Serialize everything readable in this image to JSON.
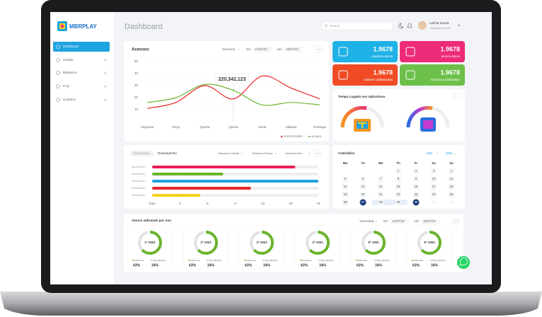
{
  "sidebar": {
    "logo": "MBRPLAY",
    "menu": [
      "Dashboard",
      "Gestão",
      "Biblioteca",
      "FAQ",
      "Contatos"
    ]
  },
  "header": {
    "title": "Dashboard",
    "search": "Search",
    "user_name": "Letícia Souza",
    "user_role": "Literatura Escolar"
  },
  "stats": [
    {
      "value": "1.9678",
      "label": "usuários ativos",
      "color": "#1fb2e6"
    },
    {
      "value": "1.9678",
      "label": "alunos ativos",
      "color": "#ec2b79"
    },
    {
      "value": "1.9678",
      "label": "classes cadastradas",
      "color": "#f04b24"
    },
    {
      "value": "1.9678",
      "label": "escolas cadastradas",
      "color": "#6cc04a"
    }
  ],
  "chart_data": [
    {
      "type": "line",
      "title": "Acessos",
      "period": "Semanal",
      "from_label": "De:",
      "from": "12/07/23",
      "to_label": "Até:",
      "to": "18/07/23",
      "categories": [
        "Segunda",
        "Terça",
        "Quarta",
        "Quinta",
        "Sexta",
        "Sábado",
        "Domingo"
      ],
      "series": [
        {
          "name": "PROFESSORES",
          "color": "#e8262b",
          "values": [
            11,
            16,
            30,
            19,
            38,
            28,
            19
          ]
        },
        {
          "name": "ALUNOS",
          "color": "#6ab42d",
          "values": [
            16,
            20,
            31,
            26,
            14,
            16,
            14
          ]
        }
      ],
      "ylim": [
        0,
        50
      ],
      "yticks": [
        10,
        20,
        30,
        40,
        50
      ],
      "grid": true,
      "annotation": "220,342,123"
    },
    {
      "type": "bar",
      "orientation": "horizontal",
      "tabs": [
        "Quantidade",
        "Desempenho"
      ],
      "filters": [
        "Selecione Cidade",
        "Selecione Escola",
        "Selecione Ano"
      ],
      "categories": [
        "Nome Aluno",
        "Nome Aluno",
        "Nome Aluno",
        "Nome Aluno",
        "Nome Aluno"
      ],
      "values": [
        15.5,
        7.7,
        18,
        10.7,
        5.2
      ],
      "colors": [
        "#ec1f5a",
        "#6ab42d",
        "#1fa3e0",
        "#e8262b",
        "#f5d21a"
      ],
      "xlim": [
        0,
        18
      ],
      "xticks": [
        {
          "value": 0,
          "label": "Dias"
        },
        3,
        6,
        9,
        12,
        15,
        18
      ],
      "grid": true
    }
  ],
  "app_time": {
    "title": "Tempo Logado nos Aplicativos"
  },
  "calendar": {
    "title": "Calendário",
    "month": "Abril",
    "year": "2021",
    "weekdays": [
      "Mo",
      "Tu",
      "We",
      "Th",
      "Fr",
      "Sa",
      "Su"
    ],
    "weeks": [
      [
        null,
        null,
        null,
        1,
        2,
        3,
        4
      ],
      [
        5,
        6,
        7,
        8,
        9,
        10,
        11
      ],
      [
        12,
        13,
        14,
        15,
        16,
        17,
        18
      ],
      [
        19,
        20,
        21,
        22,
        23,
        24,
        25
      ],
      [
        26,
        27,
        28,
        29,
        30,
        1,
        2
      ]
    ],
    "selected": [
      27,
      30
    ]
  },
  "year_usage": {
    "title": "Alunos utilizando por Ano",
    "period": "Semestral",
    "from_label": "De:",
    "from": "12/07/23",
    "to_label": "Até:",
    "to": "18/07/23",
    "legend": [
      "Utilizando",
      "Não utilizando"
    ],
    "colors": [
      "#6ab42d",
      "#e2e2e2"
    ],
    "years": [
      {
        "name": "1º ANO",
        "values": [
          63,
          34
        ],
        "value_labels": [
          "63%",
          "34%"
        ]
      },
      {
        "name": "2º ANO",
        "values": [
          63,
          34
        ],
        "value_labels": [
          "63%",
          "34%"
        ]
      },
      {
        "name": "3º ANO",
        "values": [
          63,
          34
        ],
        "value_labels": [
          "63%",
          "34%"
        ]
      },
      {
        "name": "4º ANO",
        "values": [
          63,
          34
        ],
        "value_labels": [
          "63%",
          "34%"
        ]
      },
      {
        "name": "5º ANO",
        "values": [
          63,
          34
        ],
        "value_labels": [
          "63%",
          "34%"
        ]
      },
      {
        "name": "6º ANO",
        "values": [
          63,
          34
        ],
        "value_labels": [
          "63%",
          "34%"
        ]
      }
    ]
  }
}
